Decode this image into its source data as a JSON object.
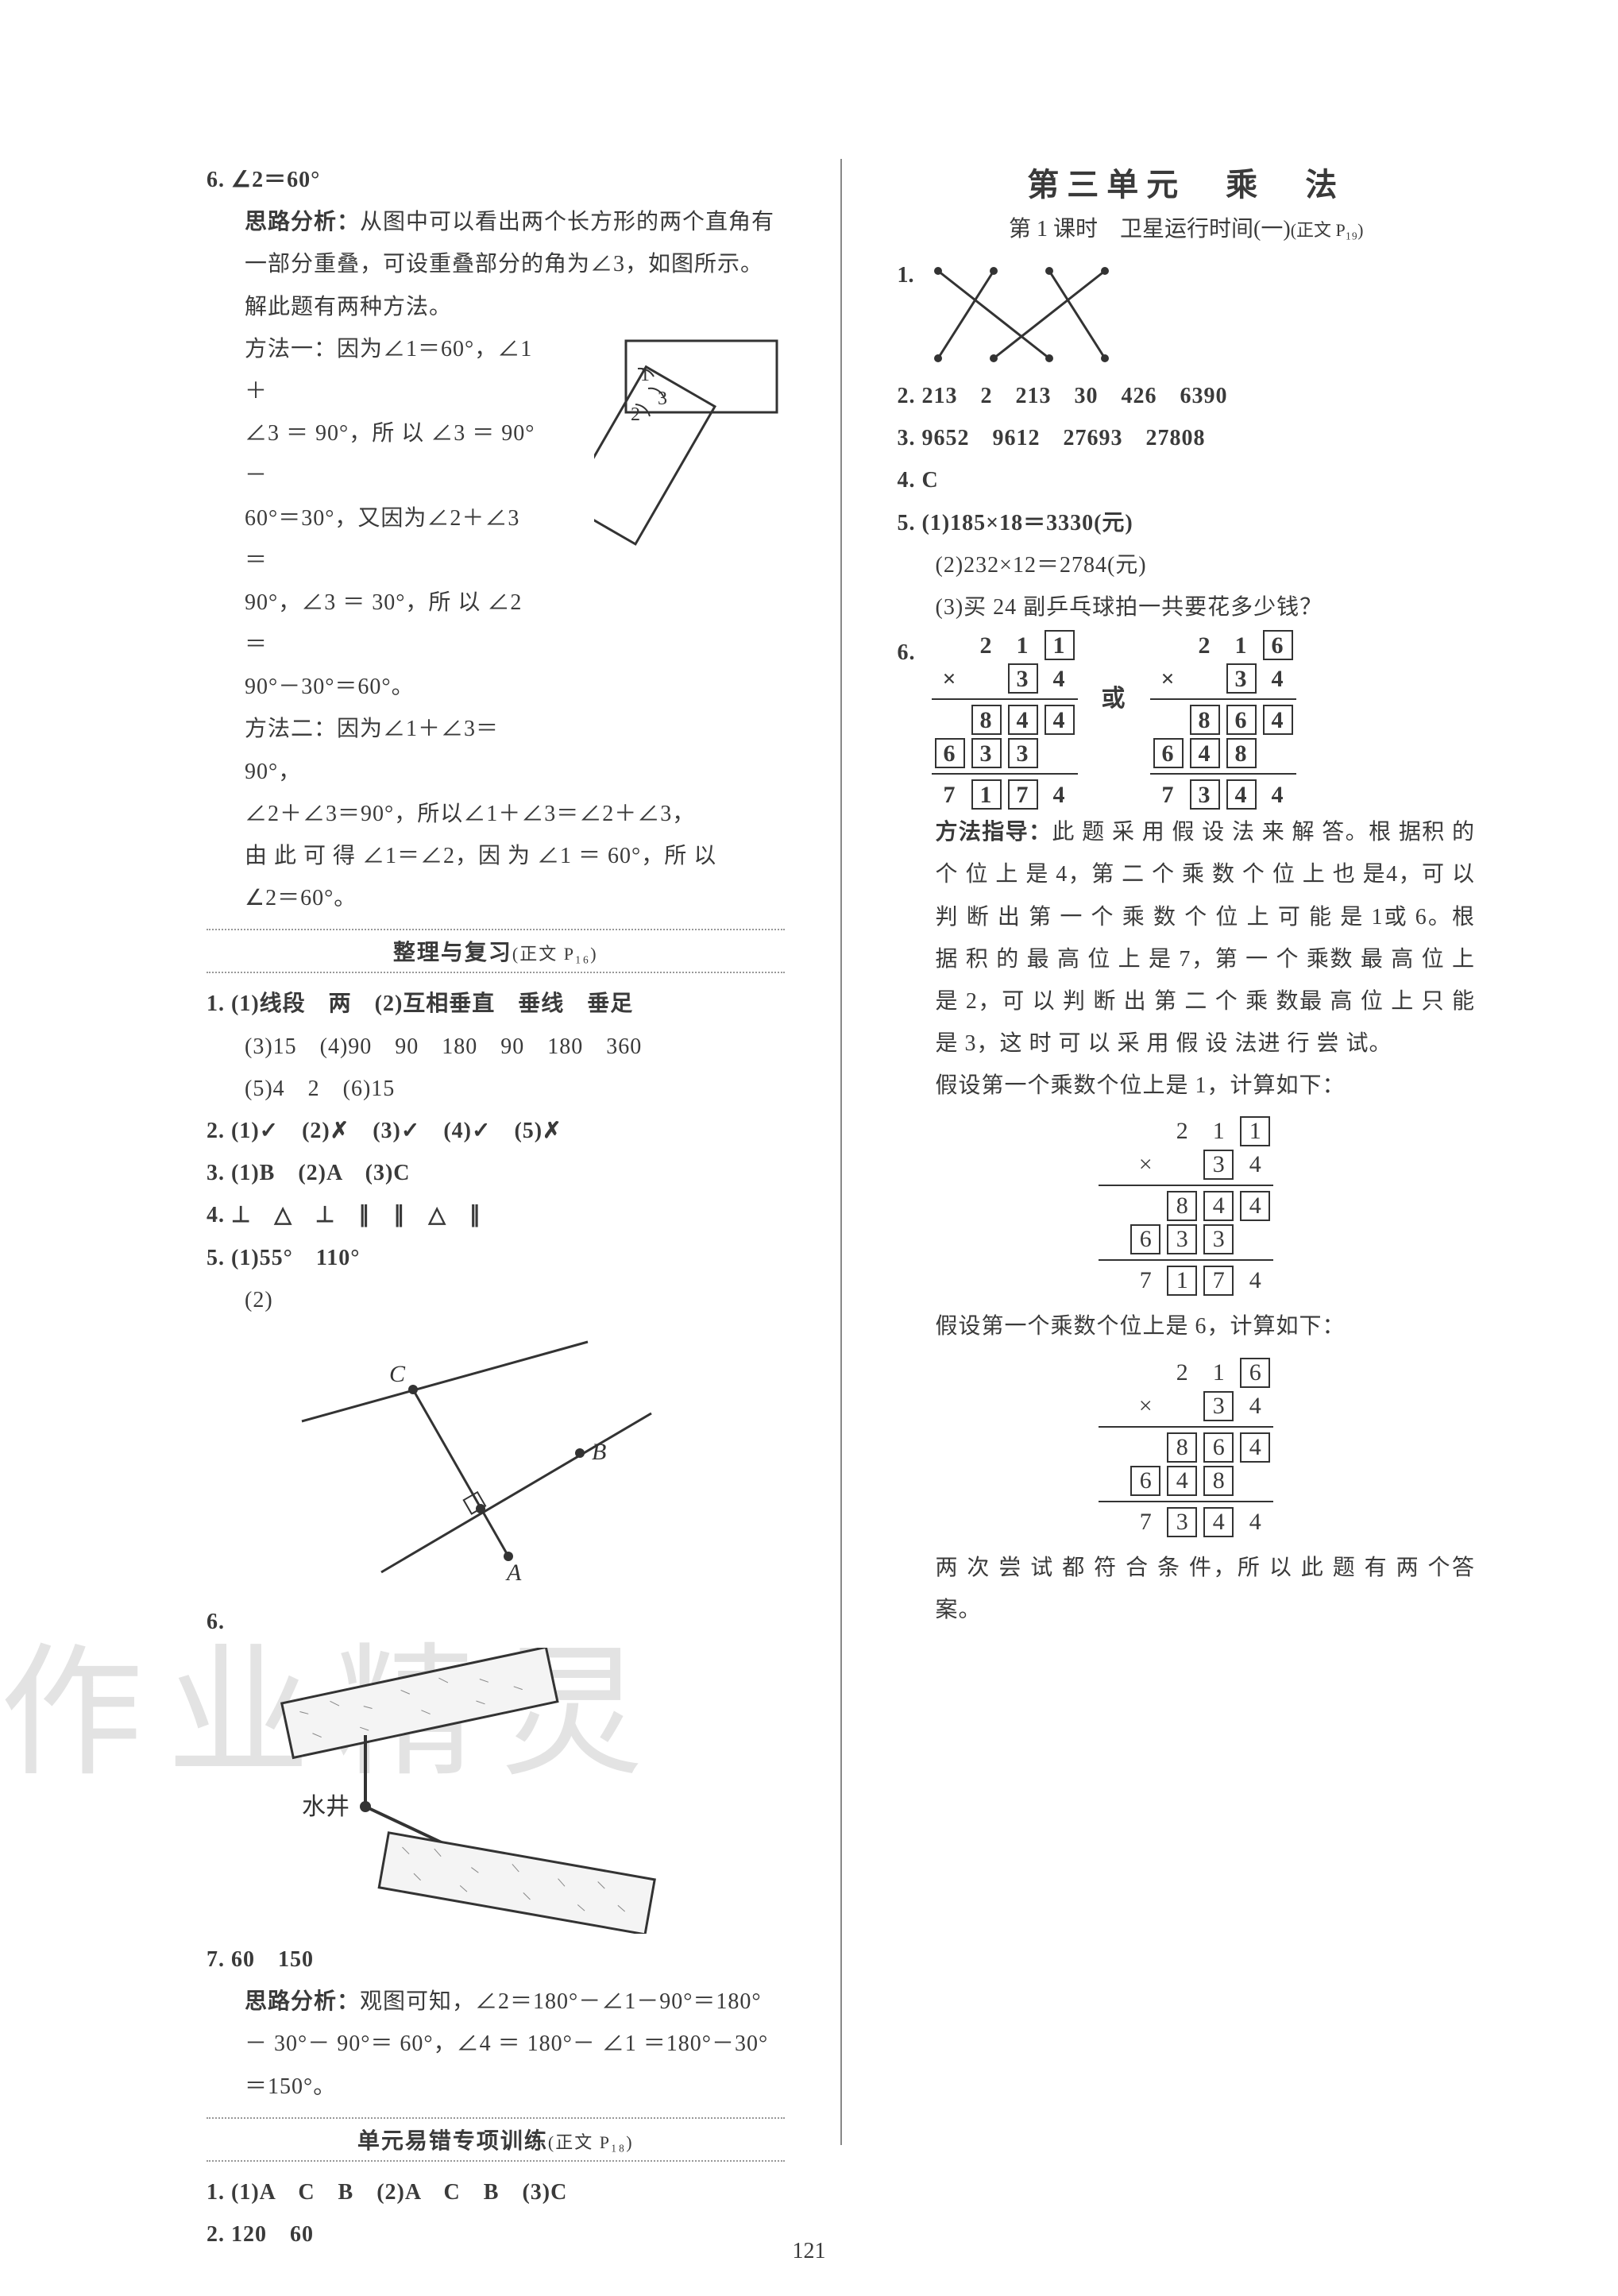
{
  "page_number": "121",
  "watermark": "作业精灵",
  "left": {
    "q6_header": "6. ∠2＝60°",
    "q6_analysis_label": "思路分析：",
    "q6_analysis": "从图中可以看出两个长方形的两个直角有一部分重叠，可设重叠部分的角为∠3，如图所示。解此题有两种方法。",
    "q6_m1a": "方法一：因为∠1＝60°，∠1＋",
    "q6_m1b": "∠3 ＝ 90°，所 以 ∠3 ＝ 90° －",
    "q6_m1c": "60°＝30°，又因为∠2＋∠3＝",
    "q6_m1d": "90°，∠3 ＝ 30°，所 以 ∠2 ＝",
    "q6_m1e": "90°－30°＝60°。",
    "q6_m2a": "方法二：因为∠1＋∠3＝90°，",
    "q6_m2b": "∠2＋∠3＝90°，所以∠1＋∠3＝∠2＋∠3，",
    "q6_m2c": "由 此 可 得 ∠1＝∠2，因 为 ∠1 ＝ 60°，所 以",
    "q6_m2d": "∠2＝60°。",
    "review_title": "整理与复习",
    "review_ref": "(正文 P₁₆)",
    "r1a": "1. (1)线段　两　(2)互相垂直　垂线　垂足",
    "r1b": "(3)15　(4)90　90　180　90　180　360",
    "r1c": "(5)4　2　(6)15",
    "r2": "2. (1)✓　(2)✗　(3)✓　(4)✓　(5)✗",
    "r3": "3. (1)B　(2)A　(3)C",
    "r4": "4. ⊥　△　⊥　∥　∥　△　∥",
    "r5a": "5. (1)55°　110°",
    "r5b": "(2)",
    "r6": "6.",
    "water_well": "水井",
    "r7": "7. 60　150",
    "r7_analysis_label": "思路分析：",
    "r7_analysis": "观图可知，∠2＝180°－∠1－90°＝180°－ 30°－ 90°＝ 60°，∠4 ＝ 180°－ ∠1 ＝180°－30°＝150°。",
    "errprac_title": "单元易错专项训练",
    "errprac_ref": "(正文 P₁₈)",
    "e1": "1. (1)A　C　B　(2)A　C　B　(3)C",
    "e2": "2. 120　60"
  },
  "right": {
    "unit_title": "第三单元　乘　法",
    "lesson_title": "第 1 课时　卫星运行时间(一)",
    "lesson_ref": "(正文 P₁₉)",
    "q1": "1.",
    "q2": "2. 213　2　213　30　426　6390",
    "q3": "3. 9652　9612　27693　27808",
    "q4": "4. C",
    "q5a": "5. (1)185×18＝3330(元)",
    "q5b": "(2)232×12＝2784(元)",
    "q5c": "(3)买 24 副乒乓球拍一共要花多少钱？",
    "q6": "6.",
    "or": "或",
    "method_label": "方法指导：",
    "method_text": "此 题 采 用 假 设 法 来 解 答。根 据积 的 个 位 上 是 4，第 二 个 乘 数 个 位 上 也 是4，可 以 判 断 出 第 一 个 乘 数 个 位 上 可 能 是 1或 6。根 据 积 的 最 高 位 上 是 7，第 一 个 乘数 最 高 位 上 是 2，可 以 判 断 出 第 二 个 乘 数最 高 位 上 只 能 是 3，这 时 可 以 采 用 假 设 法进 行 尝 试。",
    "assume1": "假设第一个乘数个位上是 1，计算如下：",
    "assume2": "假设第一个乘数个位上是 6，计算如下：",
    "conclusion": "两 次 尝 试 都 符 合 条 件，所 以 此 题 有 两 个答 案。",
    "mult1": {
      "r1": [
        "",
        "2",
        "1",
        "1"
      ],
      "r2": [
        "×",
        "",
        "3",
        "4"
      ],
      "r3": [
        "",
        "8",
        "4",
        "4"
      ],
      "r4": [
        "6",
        "3",
        "3",
        ""
      ],
      "r5": [
        "7",
        "1",
        "7",
        "4"
      ],
      "boxes_r1": [
        false,
        false,
        false,
        true
      ],
      "boxes_r2": [
        false,
        false,
        true,
        false
      ],
      "boxes_r3": [
        false,
        true,
        true,
        true
      ],
      "boxes_r4": [
        true,
        true,
        true,
        false
      ],
      "boxes_r5": [
        false,
        true,
        true,
        false
      ]
    },
    "mult2": {
      "r1": [
        "",
        "2",
        "1",
        "6"
      ],
      "r2": [
        "×",
        "",
        "3",
        "4"
      ],
      "r3": [
        "",
        "8",
        "6",
        "4"
      ],
      "r4": [
        "6",
        "4",
        "8",
        ""
      ],
      "r5": [
        "7",
        "3",
        "4",
        "4"
      ],
      "boxes_r1": [
        false,
        false,
        false,
        true
      ],
      "boxes_r2": [
        false,
        false,
        true,
        false
      ],
      "boxes_r3": [
        false,
        true,
        true,
        true
      ],
      "boxes_r4": [
        true,
        true,
        true,
        false
      ],
      "boxes_r5": [
        false,
        true,
        true,
        false
      ]
    }
  },
  "colors": {
    "text": "#3a3a3a",
    "line": "#333333",
    "watermark": "#d8d8d8",
    "texture": "#bfbfbf"
  }
}
